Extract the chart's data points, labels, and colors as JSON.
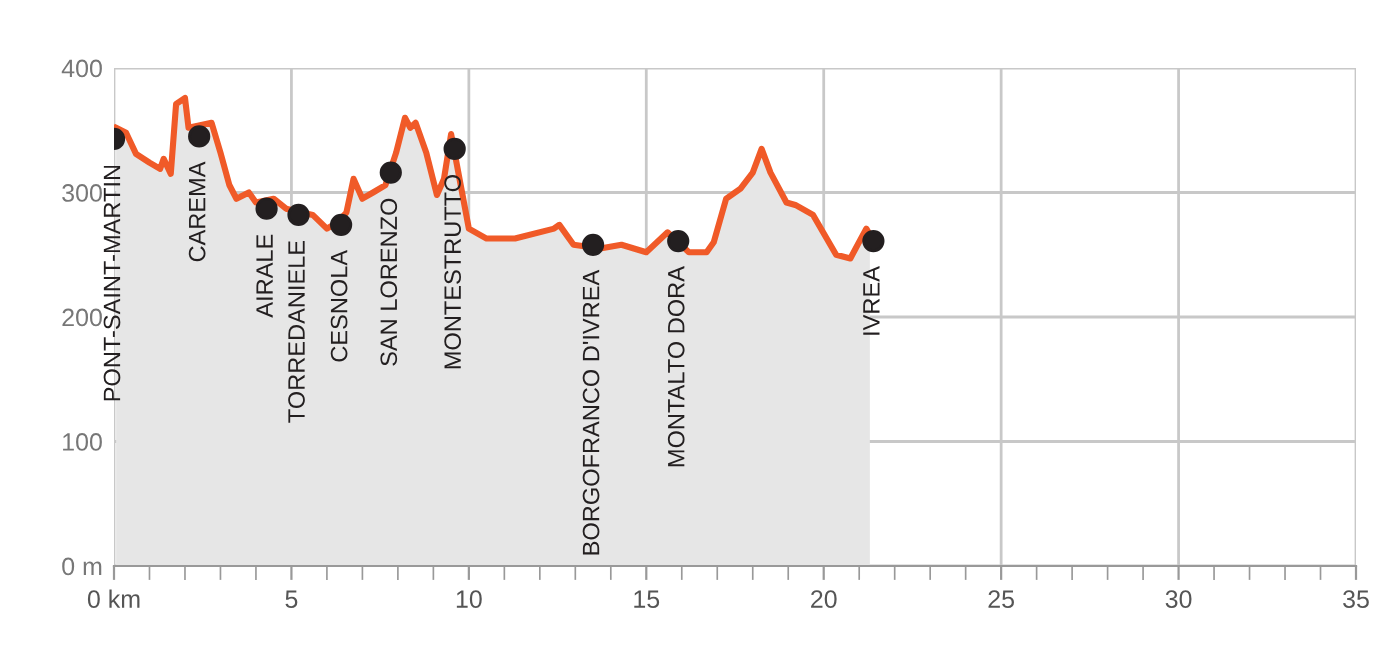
{
  "chart_data": {
    "type": "area",
    "series": [
      {
        "color": "#f05a28",
        "x": [
          0.06,
          0.34,
          0.62,
          1.0,
          1.3,
          1.4,
          1.6,
          1.75,
          2.0,
          2.1,
          2.75,
          3.0,
          3.25,
          3.45,
          3.8,
          4.0,
          4.5,
          4.85,
          5.6,
          6.0,
          6.3,
          6.55,
          6.75,
          7.0,
          7.3,
          7.65,
          7.95,
          8.2,
          8.35,
          8.5,
          8.8,
          9.1,
          9.3,
          9.5,
          10.0,
          10.5,
          11.3,
          12.4,
          12.55,
          12.95,
          13.7,
          14.3,
          15.0,
          15.6,
          16.2,
          16.7,
          16.9,
          17.25,
          17.65,
          18.0,
          18.25,
          18.5,
          18.95,
          19.2,
          19.7,
          20.35,
          20.75,
          20.9,
          21.2,
          21.3
        ],
        "values": [
          352,
          348,
          331,
          324,
          319,
          327,
          315,
          371,
          376,
          352,
          356,
          332,
          306,
          295,
          300,
          292,
          295,
          287,
          282,
          271,
          276,
          284,
          311,
          295,
          300,
          306,
          332,
          360,
          352,
          356,
          332,
          298,
          311,
          347,
          271,
          263,
          263,
          271,
          274,
          258,
          255,
          258,
          252,
          268,
          252,
          252,
          260,
          295,
          303,
          316,
          335,
          316,
          292,
          290,
          282,
          250,
          247,
          255,
          271,
          266
        ]
      }
    ],
    "annotations": [
      {
        "text": "PONT-SAINT-MARTIN",
        "x": 0,
        "y": 343
      },
      {
        "text": "CAREMA",
        "x": 2.4,
        "y": 345
      },
      {
        "text": "AIRALE",
        "x": 4.3,
        "y": 287
      },
      {
        "text": "TORREDANIELE",
        "x": 5.2,
        "y": 282
      },
      {
        "text": "CESNOLA",
        "x": 6.4,
        "y": 274
      },
      {
        "text": "SAN LORENZO",
        "x": 7.8,
        "y": 316
      },
      {
        "text": "MONTESTRUTTO",
        "x": 9.6,
        "y": 335
      },
      {
        "text": "BORGOFRANCO D'IVREA",
        "x": 13.5,
        "y": 258
      },
      {
        "text": "MONTALTO DORA",
        "x": 15.9,
        "y": 261
      },
      {
        "text": "IVREA",
        "x": 21.4,
        "y": 261
      }
    ],
    "xlim": [
      0,
      35
    ],
    "xticks": [
      {
        "value": 0,
        "label": "0 km"
      },
      5,
      10,
      15,
      20,
      25,
      30,
      35
    ],
    "ylim": [
      0,
      400
    ],
    "yticks": [
      {
        "value": 0,
        "label": "0 m"
      },
      100,
      200,
      300,
      400
    ],
    "grid": true,
    "line_style": "solid"
  }
}
